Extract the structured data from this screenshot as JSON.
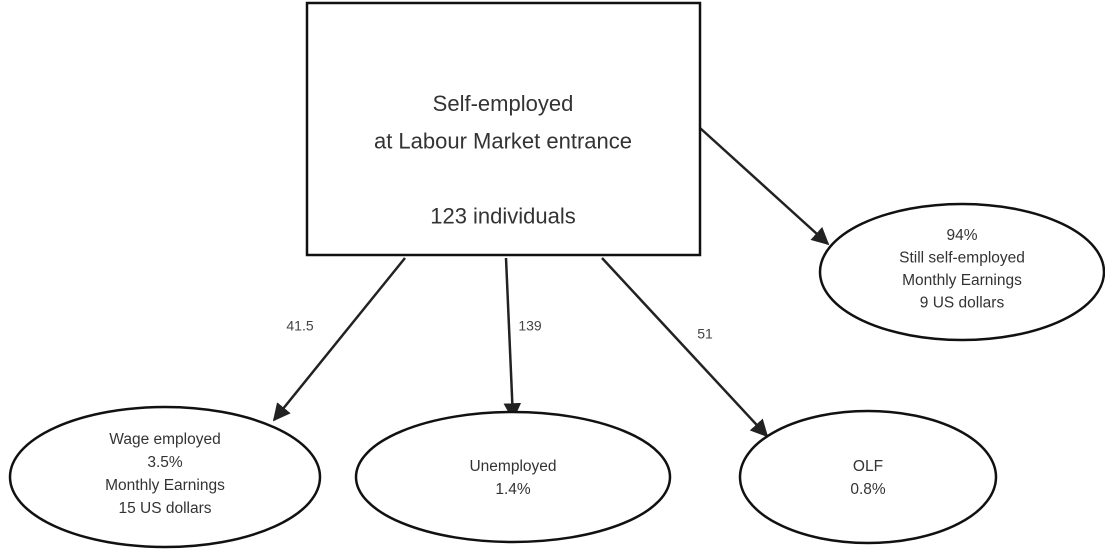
{
  "nodes": [
    {
      "lines": [
        "Self-employed",
        "at Labour Market entrance",
        "",
        "123 individuals"
      ]
    },
    {
      "lines": [
        "94%",
        "Still self-employed",
        "Monthly Earnings",
        "9 US dollars"
      ]
    },
    {
      "lines": [
        "Wage employed",
        "3.5%",
        "Monthly Earnings",
        "15 US dollars"
      ]
    },
    {
      "lines": [
        "Unemployed",
        "1.4%"
      ]
    },
    {
      "lines": [
        "OLF",
        "0.8%"
      ]
    }
  ],
  "edges": [
    {
      "label": "41.5"
    },
    {
      "label": "139"
    },
    {
      "label": "51"
    }
  ]
}
